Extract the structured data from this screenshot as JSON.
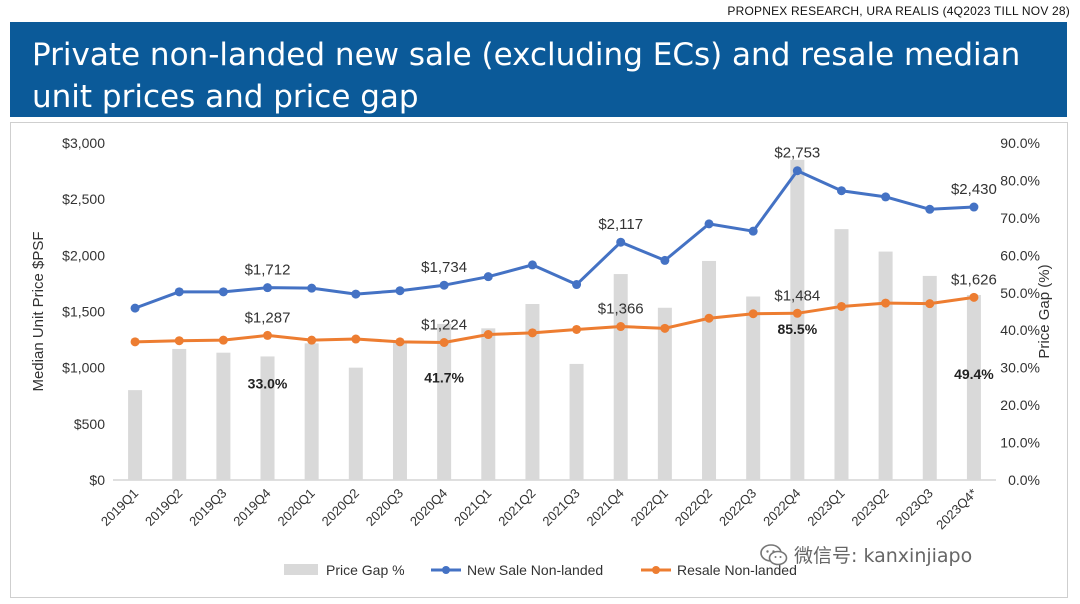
{
  "source": "PROPNEX RESEARCH, URA REALIS (4Q2023 TILL NOV 28)",
  "title": "Private non-landed new sale (excluding ECs) and resale median unit prices and price gap",
  "watermark": {
    "icon": "wechat-icon",
    "text": "微信号: kanxinjiapo"
  },
  "colors": {
    "banner": "#0b5a99",
    "bar": "#d9d9d9",
    "new_sale": "#4472c4",
    "resale": "#ed7d31"
  },
  "chart_data": {
    "type": "bar+line",
    "categories": [
      "2019Q1",
      "2019Q2",
      "2019Q3",
      "2019Q4",
      "2020Q1",
      "2020Q2",
      "2020Q3",
      "2020Q4",
      "2021Q1",
      "2021Q2",
      "2021Q3",
      "2021Q4",
      "2022Q1",
      "2022Q2",
      "2022Q3",
      "2022Q4",
      "2023Q1",
      "2023Q2",
      "2023Q3",
      "2023Q4*"
    ],
    "left_axis": {
      "label": "Median Unit Price $PSF",
      "min": 0,
      "max": 3000,
      "ticks": [
        0,
        500,
        1000,
        1500,
        2000,
        2500,
        3000
      ],
      "tick_labels": [
        "$0",
        "$500",
        "$1,000",
        "$1,500",
        "$2,000",
        "$2,500",
        "$3,000"
      ]
    },
    "right_axis": {
      "label": "Price Gap (%)",
      "min": 0,
      "max": 90,
      "ticks": [
        0,
        10,
        20,
        30,
        40,
        50,
        60,
        70,
        80,
        90
      ],
      "tick_labels": [
        "0.0%",
        "10.0%",
        "20.0%",
        "30.0%",
        "40.0%",
        "50.0%",
        "60.0%",
        "70.0%",
        "80.0%",
        "90.0%"
      ]
    },
    "series": [
      {
        "name": "Price Gap %",
        "type": "bar",
        "axis": "right",
        "values": [
          24.0,
          35.0,
          34.0,
          33.0,
          36.5,
          30.0,
          37.0,
          41.7,
          40.5,
          47.0,
          31.0,
          55.0,
          46.0,
          58.5,
          49.0,
          85.5,
          67.0,
          61.0,
          54.5,
          49.4
        ]
      },
      {
        "name": "New Sale Non-landed",
        "type": "line",
        "axis": "left",
        "values": [
          1530,
          1675,
          1675,
          1712,
          1708,
          1655,
          1685,
          1734,
          1810,
          1915,
          1740,
          2117,
          1955,
          2280,
          2215,
          2753,
          2575,
          2520,
          2410,
          2430
        ]
      },
      {
        "name": "Resale Non-landed",
        "type": "line",
        "axis": "left",
        "values": [
          1230,
          1240,
          1245,
          1287,
          1245,
          1255,
          1230,
          1224,
          1295,
          1310,
          1340,
          1366,
          1350,
          1440,
          1480,
          1484,
          1545,
          1575,
          1570,
          1626
        ]
      }
    ],
    "data_labels": {
      "new_sale": [
        {
          "index": 3,
          "text": "$1,712"
        },
        {
          "index": 7,
          "text": "$1,734"
        },
        {
          "index": 11,
          "text": "$2,117"
        },
        {
          "index": 15,
          "text": "$2,753"
        },
        {
          "index": 19,
          "text": "$2,430"
        }
      ],
      "resale": [
        {
          "index": 3,
          "text": "$1,287"
        },
        {
          "index": 7,
          "text": "$1,224"
        },
        {
          "index": 11,
          "text": "$1,366"
        },
        {
          "index": 15,
          "text": "$1,484"
        },
        {
          "index": 19,
          "text": "$1,626"
        }
      ],
      "price_gap": [
        {
          "index": 3,
          "text": "33.0%"
        },
        {
          "index": 7,
          "text": "41.7%"
        },
        {
          "index": 15,
          "text": "85.5%"
        },
        {
          "index": 19,
          "text": "49.4%"
        }
      ]
    },
    "legend": {
      "position": "bottom",
      "items": [
        "Price Gap %",
        "New Sale Non-landed",
        "Resale Non-landed"
      ]
    },
    "grid": false
  }
}
